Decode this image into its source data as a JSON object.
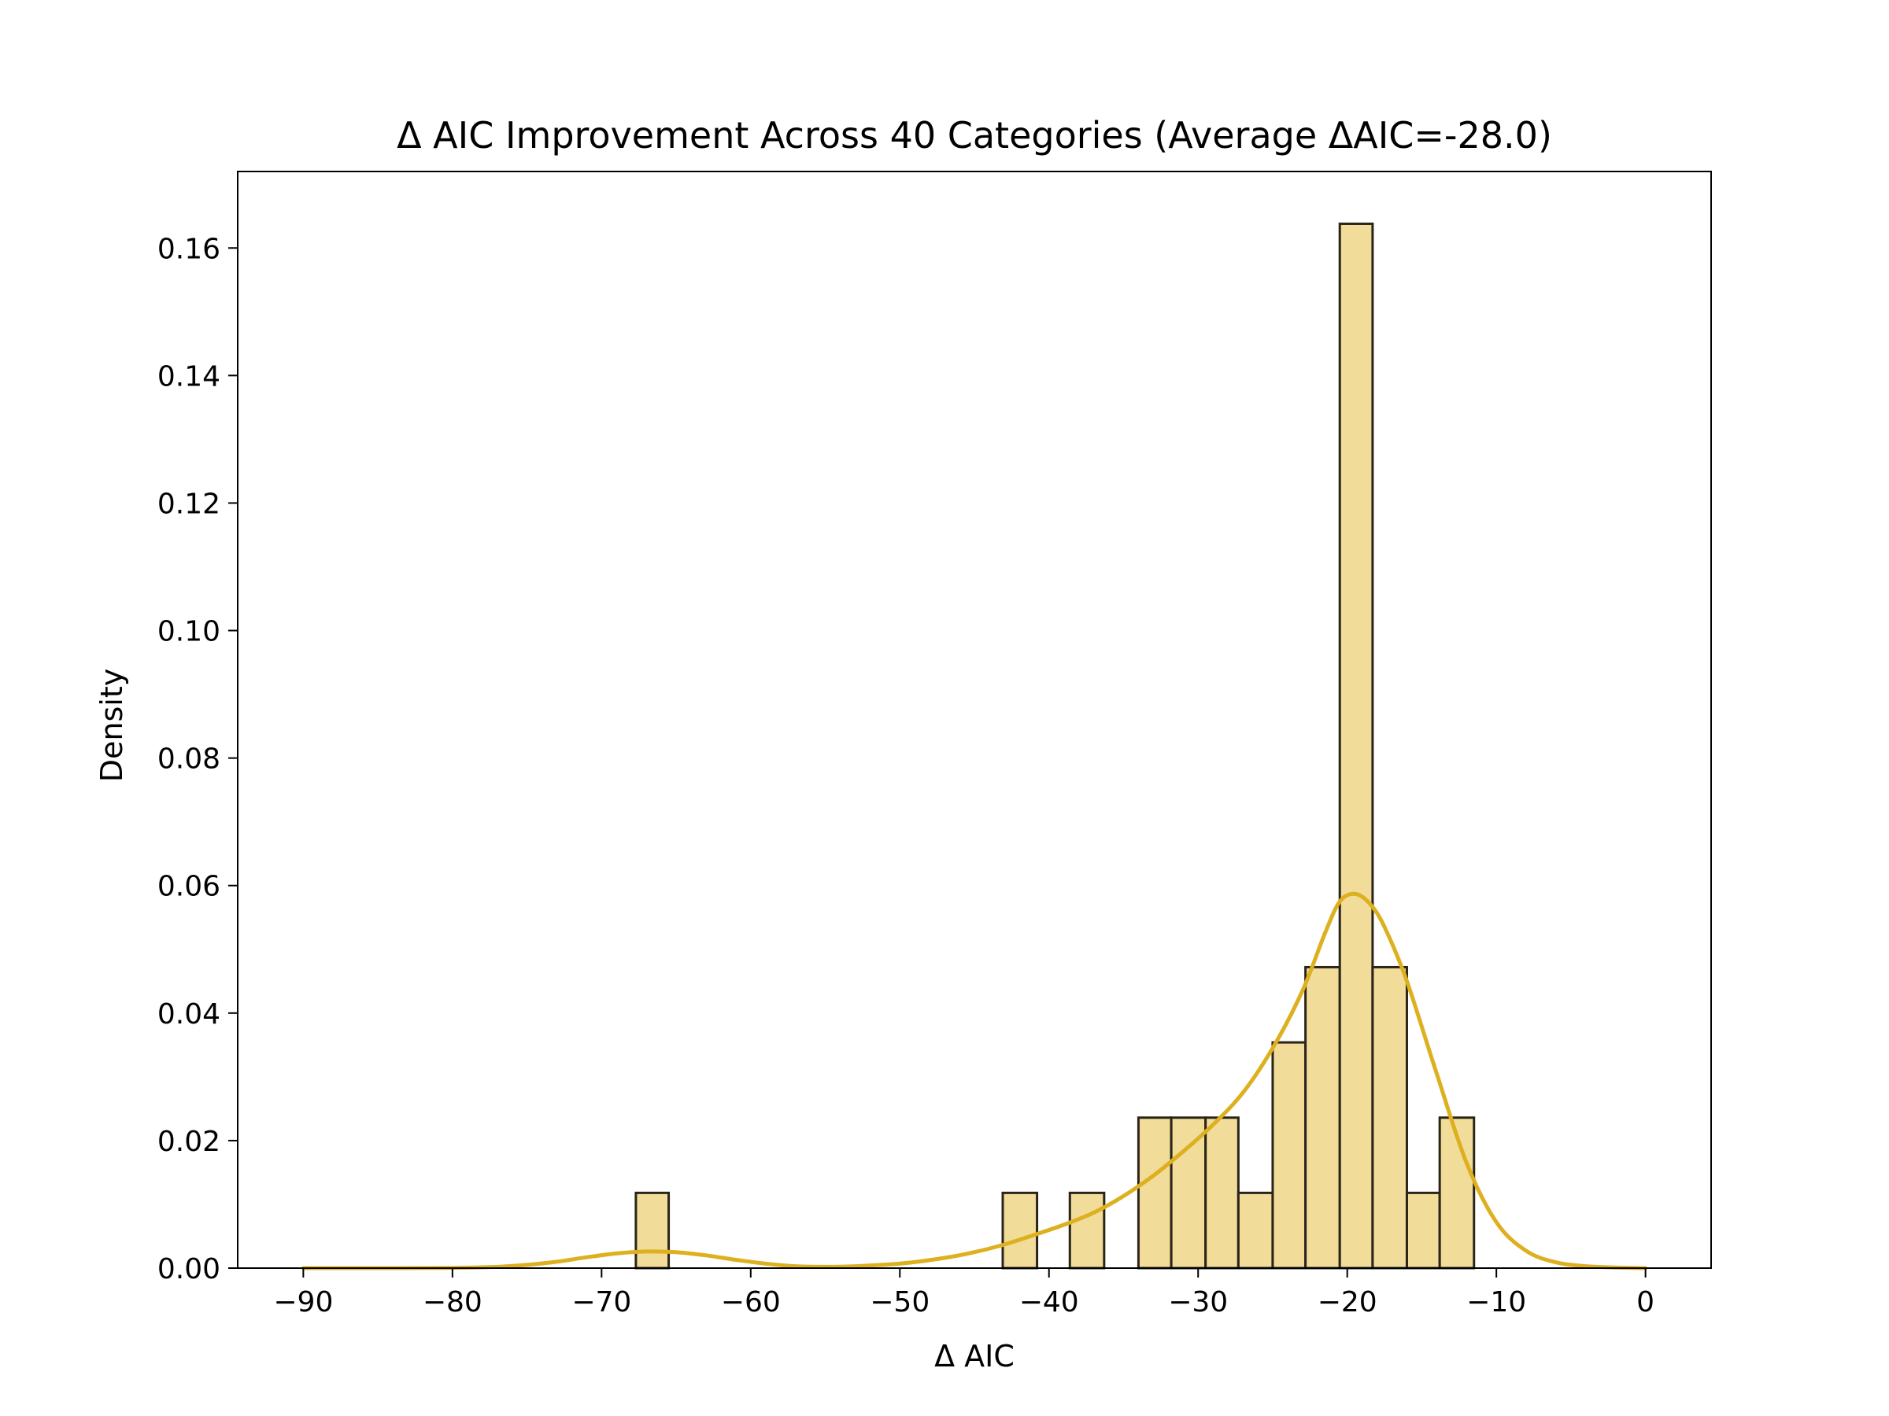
{
  "chart_data": {
    "type": "bar",
    "title": "Δ AIC Improvement Across 40 Categories (Average ΔAIC=-28.0)",
    "xlabel": "Δ AIC",
    "ylabel": "Density",
    "xlim": [
      -94.4,
      4.4
    ],
    "ylim": [
      0,
      0.172
    ],
    "x_ticks": [
      -90,
      -80,
      -70,
      -60,
      -50,
      -40,
      -30,
      -20,
      -10,
      0
    ],
    "x_tick_labels": [
      "−90",
      "−80",
      "−70",
      "−60",
      "−50",
      "−40",
      "−30",
      "−20",
      "−10",
      "0"
    ],
    "y_ticks": [
      0,
      0.02,
      0.04,
      0.06,
      0.08,
      0.1,
      0.12,
      0.14,
      0.16
    ],
    "y_tick_labels": [
      "0.00",
      "0.02",
      "0.04",
      "0.06",
      "0.08",
      "0.10",
      "0.12",
      "0.14",
      "0.16"
    ],
    "grid": false,
    "bars": [
      {
        "x0": -67.7,
        "x1": -65.5,
        "value": 0.0118
      },
      {
        "x0": -43.1,
        "x1": -40.8,
        "value": 0.0118
      },
      {
        "x0": -38.6,
        "x1": -36.3,
        "value": 0.0118
      },
      {
        "x0": -34.0,
        "x1": -31.8,
        "value": 0.0236
      },
      {
        "x0": -31.8,
        "x1": -29.5,
        "value": 0.0236
      },
      {
        "x0": -29.5,
        "x1": -27.3,
        "value": 0.0236
      },
      {
        "x0": -27.3,
        "x1": -25.0,
        "value": 0.0118
      },
      {
        "x0": -25.0,
        "x1": -22.8,
        "value": 0.0354
      },
      {
        "x0": -22.8,
        "x1": -20.5,
        "value": 0.0472
      },
      {
        "x0": -20.5,
        "x1": -18.3,
        "value": 0.1638
      },
      {
        "x0": -18.3,
        "x1": -16.0,
        "value": 0.0472
      },
      {
        "x0": -16.0,
        "x1": -13.8,
        "value": 0.0118
      },
      {
        "x0": -13.8,
        "x1": -11.5,
        "value": 0.0236
      }
    ],
    "kde": {
      "x": [
        -90,
        -85,
        -80,
        -77,
        -75,
        -73,
        -71,
        -69,
        -67,
        -65,
        -63,
        -61,
        -59,
        -57,
        -55,
        -53,
        -50,
        -47,
        -45,
        -43,
        -41,
        -39,
        -37,
        -35,
        -33,
        -31,
        -29,
        -27,
        -25,
        -23,
        -21.5,
        -20.5,
        -19.5,
        -18.5,
        -17.5,
        -16,
        -14,
        -12,
        -10,
        -8,
        -6,
        -4,
        -2,
        0
      ],
      "y": [
        0.0,
        0.0,
        3e-05,
        0.0002,
        0.0005,
        0.001,
        0.0017,
        0.0023,
        0.0026,
        0.0025,
        0.002,
        0.0013,
        0.0007,
        0.0003,
        0.0002,
        0.0003,
        0.0007,
        0.0016,
        0.0025,
        0.0037,
        0.0052,
        0.0068,
        0.0087,
        0.0113,
        0.0145,
        0.0183,
        0.0225,
        0.0275,
        0.0345,
        0.0435,
        0.0525,
        0.0575,
        0.0587,
        0.0572,
        0.0535,
        0.045,
        0.0305,
        0.0165,
        0.0072,
        0.0027,
        0.0009,
        0.0003,
        0.0001,
        0.0
      ]
    },
    "colors": {
      "bar_fill": "#f1dc9a",
      "bar_edge": "#2b2418",
      "kde_line": "#ddb01f"
    }
  }
}
